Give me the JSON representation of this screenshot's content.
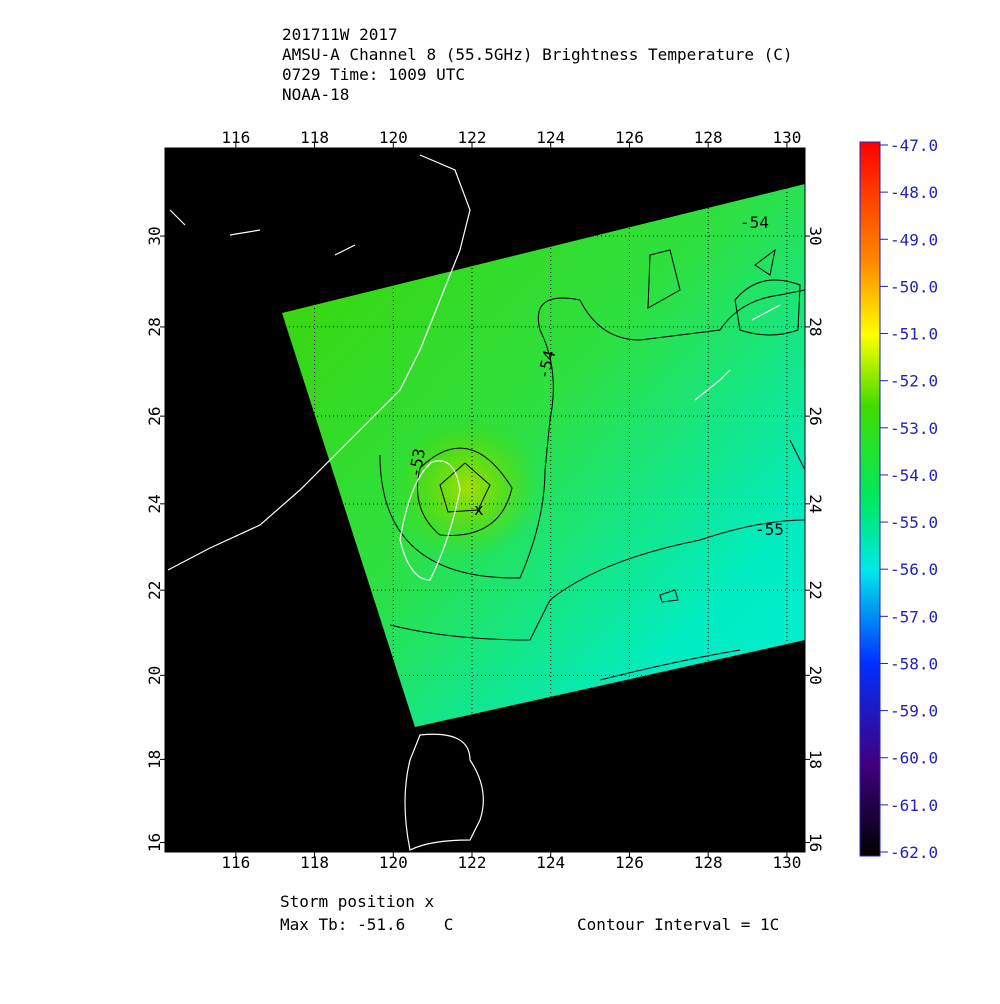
{
  "title_lines": [
    "201711W 2017",
    "AMSU-A Channel 8 (55.5GHz) Brightness Temperature (C)",
    "0729 Time: 1009 UTC",
    "NOAA-18"
  ],
  "map": {
    "lon_range": [
      114.2,
      130.46
    ],
    "lat_range": [
      15.77,
      31.9
    ],
    "lon_ticks": [
      116,
      118,
      120,
      122,
      124,
      126,
      128,
      130
    ],
    "lat_ticks": [
      16,
      18,
      20,
      22,
      24,
      26,
      28,
      30
    ],
    "contour_labels": [
      "-54",
      "-54",
      "-55",
      "-53"
    ]
  },
  "colorbar": {
    "range": [
      -62,
      -47
    ],
    "ticks": [
      {
        "value": -47,
        "label": "-47.0"
      },
      {
        "value": -48,
        "label": "-48.0"
      },
      {
        "value": -49,
        "label": "-49.0"
      },
      {
        "value": -50,
        "label": "-50.0"
      },
      {
        "value": -51,
        "label": "-51.0"
      },
      {
        "value": -52,
        "label": "-52.0"
      },
      {
        "value": -53,
        "label": "-53.0"
      },
      {
        "value": -54,
        "label": "-54.0"
      },
      {
        "value": -55,
        "label": "-55.0"
      },
      {
        "value": -56,
        "label": "-56.0"
      },
      {
        "value": -57,
        "label": "-57.0"
      },
      {
        "value": -58,
        "label": "-58.0"
      },
      {
        "value": -59,
        "label": "-59.0"
      },
      {
        "value": -60,
        "label": "-60.0"
      },
      {
        "value": -61,
        "label": "-61.0"
      },
      {
        "value": -62,
        "label": "-62.0"
      }
    ]
  },
  "footer": {
    "storm_position": "Storm position x",
    "max_tb": "Max Tb: -51.6    C",
    "contour_interval": "Contour Interval = 1C"
  }
}
